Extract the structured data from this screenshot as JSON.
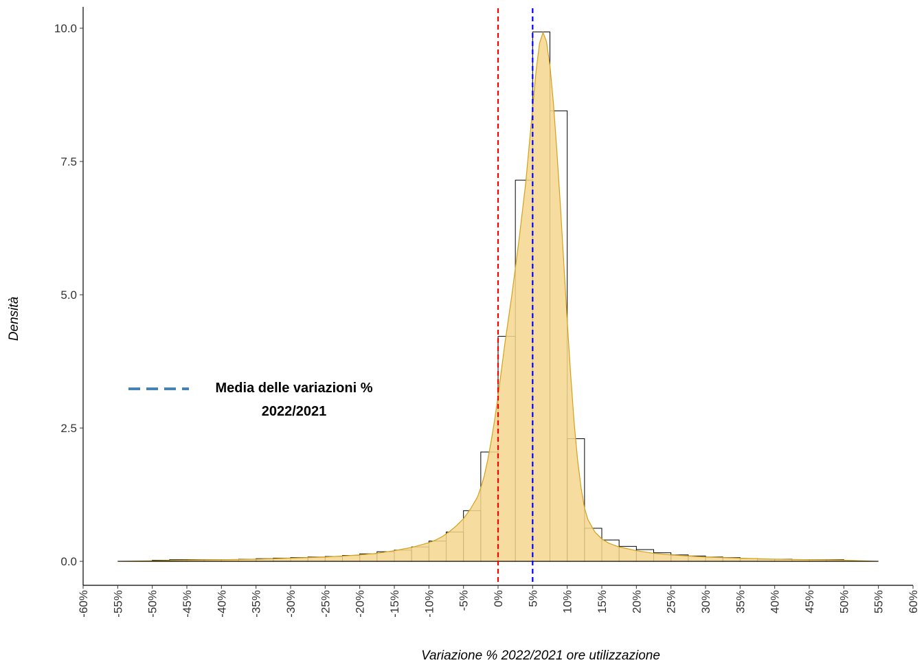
{
  "chart_data": {
    "type": "bar",
    "title": "",
    "xlabel": "Variazione % 2022/2021 ore utilizzazione",
    "ylabel": "Densità",
    "xlim": [
      -0.6,
      0.6
    ],
    "ylim": [
      -0.45,
      10.4
    ],
    "x_ticks": [
      -0.6,
      -0.55,
      -0.5,
      -0.45,
      -0.4,
      -0.35,
      -0.3,
      -0.25,
      -0.2,
      -0.15,
      -0.1,
      -0.05,
      0,
      0.05,
      0.1,
      0.15,
      0.2,
      0.25,
      0.3,
      0.35,
      0.4,
      0.45,
      0.5,
      0.55,
      0.6
    ],
    "x_tick_labels": [
      "-60%",
      "-55%",
      "-50%",
      "-45%",
      "-40%",
      "-35%",
      "-30%",
      "-25%",
      "-20%",
      "-15%",
      "-10%",
      "-5%",
      "0%",
      "5%",
      "10%",
      "15%",
      "20%",
      "25%",
      "30%",
      "35%",
      "40%",
      "45%",
      "50%",
      "55%",
      "60%"
    ],
    "y_ticks": [
      0,
      2.5,
      5,
      7.5,
      10
    ],
    "y_tick_labels": [
      "0.0",
      "2.5",
      "5.0",
      "7.5",
      "10.0"
    ],
    "histogram": {
      "bin_width": 0.025,
      "bin_edges": [
        -0.5,
        -0.475,
        -0.45,
        -0.425,
        -0.4,
        -0.375,
        -0.35,
        -0.325,
        -0.3,
        -0.275,
        -0.25,
        -0.225,
        -0.2,
        -0.175,
        -0.15,
        -0.125,
        -0.1,
        -0.075,
        -0.05,
        -0.025,
        0,
        0.025,
        0.05,
        0.075,
        0.1,
        0.125,
        0.15,
        0.175,
        0.2,
        0.225,
        0.25,
        0.275,
        0.3,
        0.325,
        0.35,
        0.375,
        0.4,
        0.425,
        0.45,
        0.475,
        0.5
      ],
      "density": [
        0.02,
        0.03,
        0.03,
        0.03,
        0.03,
        0.04,
        0.05,
        0.06,
        0.07,
        0.08,
        0.09,
        0.11,
        0.14,
        0.18,
        0.21,
        0.27,
        0.38,
        0.55,
        0.95,
        2.05,
        4.22,
        7.15,
        9.93,
        8.45,
        2.3,
        0.62,
        0.4,
        0.28,
        0.22,
        0.16,
        0.12,
        0.1,
        0.08,
        0.07,
        0.05,
        0.04,
        0.04,
        0.03,
        0.03,
        0.03
      ]
    },
    "density_curve": {
      "x": [
        -0.55,
        -0.5,
        -0.45,
        -0.4,
        -0.35,
        -0.3,
        -0.25,
        -0.2,
        -0.175,
        -0.15,
        -0.125,
        -0.1,
        -0.09,
        -0.08,
        -0.07,
        -0.06,
        -0.05,
        -0.04,
        -0.03,
        -0.025,
        -0.02,
        -0.015,
        -0.01,
        -0.005,
        0,
        0.005,
        0.01,
        0.015,
        0.02,
        0.025,
        0.03,
        0.035,
        0.04,
        0.045,
        0.05,
        0.055,
        0.06,
        0.065,
        0.07,
        0.075,
        0.08,
        0.085,
        0.09,
        0.095,
        0.1,
        0.105,
        0.11,
        0.115,
        0.12,
        0.125,
        0.13,
        0.14,
        0.15,
        0.16,
        0.175,
        0.2,
        0.225,
        0.25,
        0.3,
        0.35,
        0.4,
        0.45,
        0.5,
        0.55
      ],
      "y": [
        0,
        0.01,
        0.02,
        0.03,
        0.04,
        0.06,
        0.08,
        0.12,
        0.15,
        0.2,
        0.26,
        0.35,
        0.4,
        0.47,
        0.56,
        0.67,
        0.8,
        0.98,
        1.2,
        1.38,
        1.6,
        1.9,
        2.25,
        2.65,
        3.1,
        3.6,
        4.1,
        4.55,
        5.0,
        5.5,
        6.0,
        6.55,
        7.1,
        7.8,
        8.5,
        9.2,
        9.72,
        9.92,
        9.75,
        9.3,
        8.6,
        7.7,
        6.7,
        5.6,
        4.5,
        3.5,
        2.6,
        1.9,
        1.38,
        1.0,
        0.78,
        0.55,
        0.42,
        0.34,
        0.27,
        0.2,
        0.15,
        0.12,
        0.08,
        0.06,
        0.04,
        0.03,
        0.02,
        0
      ],
      "fill_color": "#f5d78e",
      "stroke_color": "#d4a017"
    },
    "reference_lines": [
      {
        "x": 0,
        "color": "#ff0000",
        "style": "dashed"
      },
      {
        "x": 0.05,
        "color": "#0000ff",
        "style": "dashed"
      }
    ],
    "baseline": {
      "x": [
        -0.55,
        0.55
      ],
      "y": 0
    },
    "legend": {
      "placement": "left-middle",
      "line_color": "#4682b4",
      "line_style": "dashed",
      "label_line1": "Media delle variazioni %",
      "label_line2": "2022/2021"
    },
    "grid": false
  }
}
